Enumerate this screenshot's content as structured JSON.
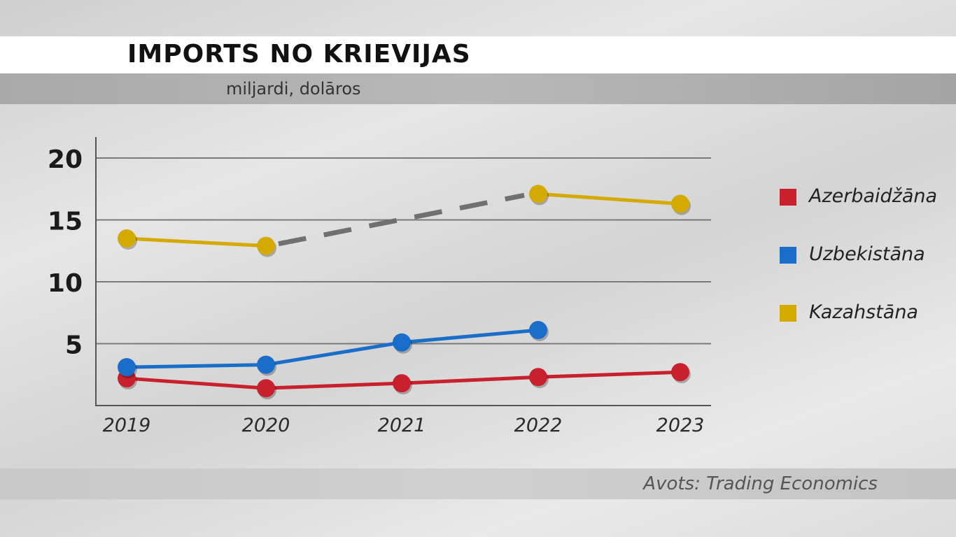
{
  "header": {
    "title": "IMPORTS NO KRIEVIJAS",
    "subtitle": "miljardi, dolāros"
  },
  "footer": {
    "source": "Avots: Trading Economics"
  },
  "chart_data": {
    "type": "line",
    "title": "IMPORTS NO KRIEVIJAS",
    "subtitle": "miljardi, dolāros",
    "x": [
      "2019",
      "2020",
      "2021",
      "2022",
      "2023"
    ],
    "ylim": [
      0,
      20
    ],
    "yticks": [
      5,
      10,
      15,
      20
    ],
    "grid": true,
    "legend_position": "right",
    "series": [
      {
        "name": "Azerbaidžāna",
        "color": "#c8202c",
        "values": [
          2.2,
          1.4,
          1.8,
          2.3,
          2.7
        ]
      },
      {
        "name": "Uzbekistāna",
        "color": "#1a6ec9",
        "values": [
          3.1,
          3.3,
          5.1,
          6.1,
          null
        ]
      },
      {
        "name": "Kazahstāna",
        "color": "#d4aa00",
        "values": [
          13.5,
          12.9,
          null,
          17.1,
          16.3
        ]
      }
    ],
    "annotations": [
      {
        "type": "dashed-gap",
        "series": "Kazahstāna",
        "from": "2020",
        "to": "2022",
        "color": "#707070"
      }
    ]
  }
}
